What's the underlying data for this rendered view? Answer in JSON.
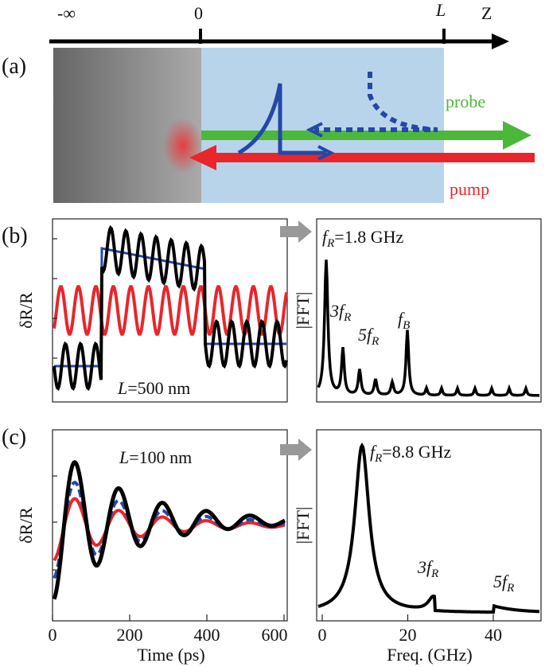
{
  "panels": [
    {
      "label": "(a)",
      "axis": {
        "left": "-∞",
        "origin": "0",
        "end": "L",
        "name": "Z"
      },
      "probe": "probe",
      "pump": "pump"
    },
    {
      "label": "(b)",
      "ylabel": "δR/R",
      "fft_label": "|FFT|",
      "annotation": {
        "symbol": "L",
        "text": "=500 nm"
      },
      "peaks": [
        {
          "symbol": "f",
          "sub": "R",
          "text": "=1.8 GHz"
        },
        {
          "prefix": "3",
          "symbol": "f",
          "sub": "R"
        },
        {
          "prefix": "5",
          "symbol": "f",
          "sub": "R"
        },
        {
          "symbol": "f",
          "sub": "B"
        }
      ]
    },
    {
      "label": "(c)",
      "ylabel": "δR/R",
      "fft_label": "|FFT|",
      "annotation": {
        "symbol": "L",
        "text": "=100 nm"
      },
      "peaks": [
        {
          "symbol": "f",
          "sub": "R",
          "text": "=8.8 GHz"
        },
        {
          "prefix": "3",
          "symbol": "f",
          "sub": "R"
        },
        {
          "prefix": "5",
          "symbol": "f",
          "sub": "R"
        }
      ],
      "time_ticks": [
        "0",
        "200",
        "400",
        "600"
      ],
      "time_label": "Time (ps)",
      "freq_ticks": [
        "0",
        "20",
        "40"
      ],
      "freq_label": "Freq. (GHz)"
    }
  ]
}
